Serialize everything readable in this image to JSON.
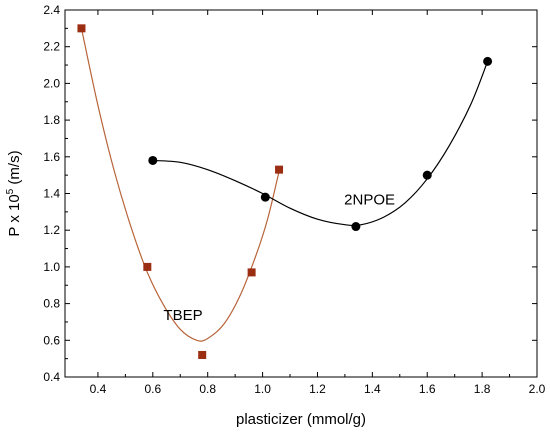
{
  "chart_data": {
    "type": "scatter",
    "xlabel": "plasticizer (mmol/g)",
    "ylabel_main": "P x 10",
    "ylabel_sup": "5",
    "ylabel_unit": " (m/s)",
    "xlim": [
      0.28,
      2.0
    ],
    "ylim": [
      0.4,
      2.4
    ],
    "x_ticks": [
      0.4,
      0.6,
      0.8,
      1.0,
      1.2,
      1.4,
      1.6,
      1.8,
      2.0
    ],
    "x_tick_labels": [
      "0.4",
      "0.6",
      "0.8",
      "1.0",
      "1.2",
      "1.4",
      "1.6",
      "1.8",
      "2.0"
    ],
    "y_ticks": [
      0.4,
      0.6,
      0.8,
      1.0,
      1.2,
      1.4,
      1.6,
      1.8,
      2.0,
      2.2,
      2.4
    ],
    "y_tick_labels": [
      "0.4",
      "0.6",
      "0.8",
      "1.0",
      "1.2",
      "1.4",
      "1.6",
      "1.8",
      "2.0",
      "2.2",
      "2.4"
    ],
    "grid": false,
    "series": [
      {
        "name": "TBEP",
        "marker": "square",
        "color": "#9b2d12",
        "curve_color": "#b8643a",
        "x": [
          0.34,
          0.58,
          0.78,
          0.96,
          1.06
        ],
        "y": [
          2.3,
          1.0,
          0.52,
          0.97,
          1.53
        ],
        "fit": [
          [
            0.34,
            2.3
          ],
          [
            0.4,
            1.88
          ],
          [
            0.46,
            1.52
          ],
          [
            0.52,
            1.22
          ],
          [
            0.58,
            0.97
          ],
          [
            0.64,
            0.79
          ],
          [
            0.7,
            0.66
          ],
          [
            0.76,
            0.6
          ],
          [
            0.8,
            0.61
          ],
          [
            0.86,
            0.69
          ],
          [
            0.92,
            0.85
          ],
          [
            0.98,
            1.08
          ],
          [
            1.02,
            1.27
          ],
          [
            1.06,
            1.52
          ]
        ]
      },
      {
        "name": "2NPOE",
        "marker": "circle",
        "color": "#000000",
        "curve_color": "#000000",
        "x": [
          0.6,
          1.01,
          1.34,
          1.6,
          1.82
        ],
        "y": [
          1.58,
          1.38,
          1.22,
          1.5,
          2.12
        ],
        "fit": [
          [
            0.6,
            1.58
          ],
          [
            0.7,
            1.57
          ],
          [
            0.8,
            1.53
          ],
          [
            0.9,
            1.47
          ],
          [
            1.0,
            1.4
          ],
          [
            1.1,
            1.32
          ],
          [
            1.2,
            1.26
          ],
          [
            1.3,
            1.23
          ],
          [
            1.36,
            1.23
          ],
          [
            1.44,
            1.27
          ],
          [
            1.52,
            1.35
          ],
          [
            1.6,
            1.48
          ],
          [
            1.68,
            1.66
          ],
          [
            1.76,
            1.89
          ],
          [
            1.82,
            2.12
          ]
        ]
      }
    ],
    "annotations": [
      {
        "text": "TBEP",
        "x": 0.71,
        "y": 0.71
      },
      {
        "text": "2NPOE",
        "x": 1.39,
        "y": 1.34
      }
    ]
  }
}
